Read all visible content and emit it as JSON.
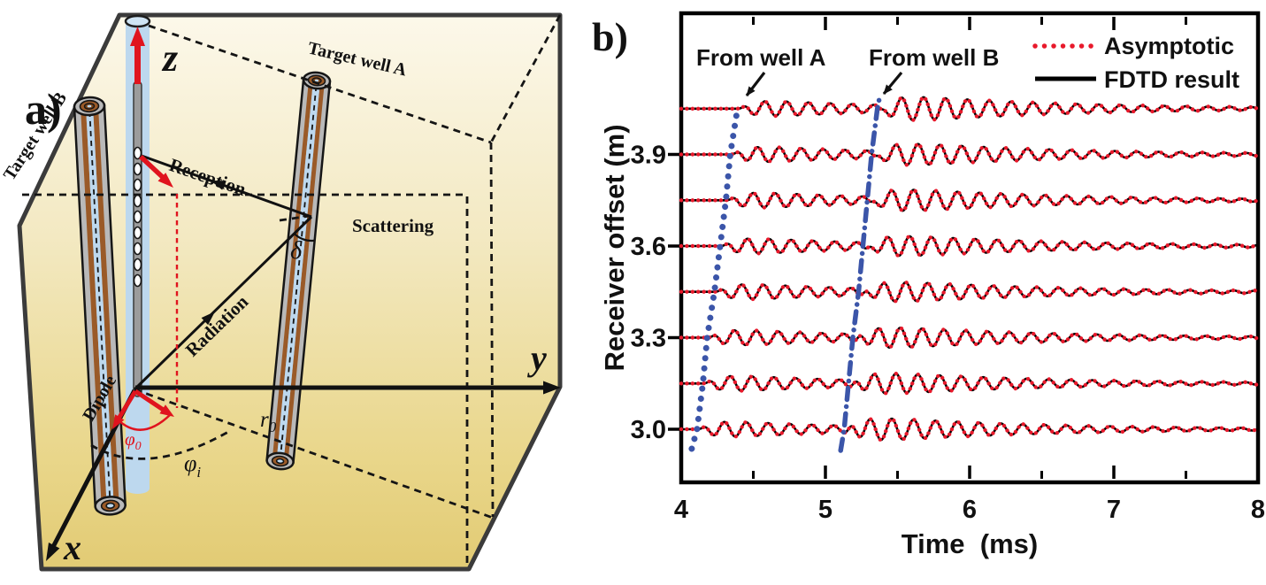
{
  "figure": {
    "panel_a_label": "a)",
    "panel_b_label": "b)"
  },
  "diagram": {
    "axis_labels": {
      "x": "x",
      "y": "y",
      "z": "z"
    },
    "well_labels": {
      "target_well_a": "Target well A",
      "target_well_b": "Target well B"
    },
    "ray_labels": {
      "reception": "Reception",
      "scattering": "Scattering",
      "radiation": "Radiation",
      "dipole": "Dipole"
    },
    "symbols": {
      "delta": "δ",
      "phi": "φ",
      "phi0_sub": "0",
      "phii_sub": "i",
      "r": "r",
      "r0_sub": "0"
    },
    "colors": {
      "accent_red": "#e0141e",
      "marker_blue": "#3b55a9",
      "box_top": "#fcf8ea",
      "box_mid": "#f3e9c2",
      "box_bottom": "#e2cb74",
      "well_blue": "#bdd8ee",
      "well_brown": "#9a5a28",
      "well_gray": "#b9b9b9",
      "outline": "#3b3b3b"
    }
  },
  "chart_data": {
    "type": "line",
    "title": "",
    "xlabel": "Time  (ms)",
    "ylabel": "Receiver offset (m)",
    "xlim": [
      4,
      8
    ],
    "ylim": [
      2.83,
      4.36
    ],
    "grid": false,
    "legend_position": "top-right",
    "xticks": [
      4,
      5,
      6,
      7,
      8
    ],
    "xminorticks": [
      4.5,
      5.5,
      6.5,
      7.5
    ],
    "yticks": [
      3.0,
      3.3,
      3.6,
      3.9
    ],
    "ytick_labels": [
      "3.0",
      "3.3",
      "3.6",
      "3.9"
    ],
    "trace_offsets_m": [
      3.0,
      3.15,
      3.3,
      3.45,
      3.6,
      3.75,
      3.9,
      4.05
    ],
    "arrival_time_well_A_ms": [
      4.11,
      4.15,
      4.18,
      4.23,
      4.27,
      4.31,
      4.34,
      4.39
    ],
    "arrival_time_well_B_ms": [
      5.13,
      5.16,
      5.19,
      5.23,
      5.26,
      5.29,
      5.32,
      5.36
    ],
    "waveform_model": {
      "freq_cycles_per_ms": 6.6,
      "amp_A_rel": 0.24,
      "amp_B_rel": 0.38,
      "decay_A_ms": 0.9,
      "decay_B_ms": 1.1,
      "rise_ms": 0.09,
      "phase_B_rad": 0.6
    },
    "series": [
      {
        "name": "Asymptotic",
        "color": "#e8192b",
        "style": "dotted"
      },
      {
        "name": "FDTD result",
        "color": "#000000",
        "style": "solid"
      }
    ],
    "annotations": [
      {
        "text": "From well A"
      },
      {
        "text": "From well B"
      }
    ],
    "arrival_markers": [
      {
        "well": "A",
        "style": "dotted",
        "color": "#3b55a9"
      },
      {
        "well": "B",
        "style": "dash-dot",
        "color": "#3b55a9"
      }
    ]
  }
}
